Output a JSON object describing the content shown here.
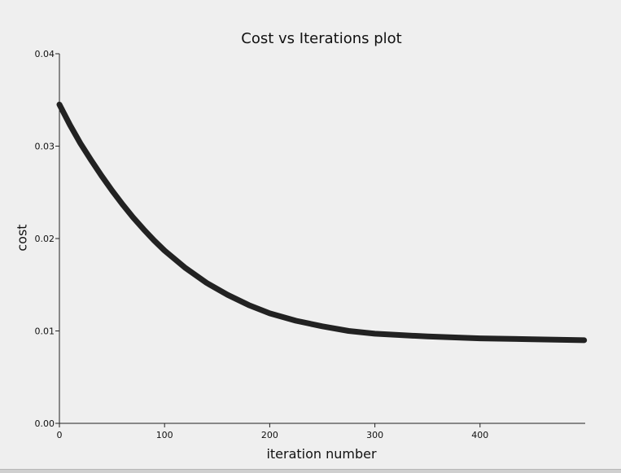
{
  "chart_data": {
    "type": "line",
    "title": "Cost vs Iterations plot",
    "xlabel": "iteration number",
    "ylabel": "cost",
    "xlim": [
      0,
      500
    ],
    "ylim": [
      0,
      0.04
    ],
    "x_ticks": [
      0,
      100,
      200,
      300,
      400
    ],
    "x_tick_labels": [
      "0",
      "100",
      "200",
      "300",
      "400"
    ],
    "y_ticks": [
      0,
      0.01,
      0.02,
      0.03,
      0.04
    ],
    "y_tick_labels": [
      "0.00",
      "0.01",
      "0.02",
      "0.03",
      "0.04"
    ],
    "grid": false,
    "line_color": "#222222",
    "series": [
      {
        "x": [
          0,
          10,
          20,
          30,
          40,
          50,
          60,
          70,
          80,
          90,
          100,
          120,
          140,
          160,
          180,
          200,
          225,
          250,
          275,
          300,
          350,
          400,
          450,
          499
        ],
        "values": [
          0.0345,
          0.0323,
          0.0303,
          0.0285,
          0.0268,
          0.0252,
          0.0237,
          0.0223,
          0.021,
          0.0198,
          0.0187,
          0.0168,
          0.0152,
          0.0139,
          0.0128,
          0.0119,
          0.0111,
          0.0105,
          0.01,
          0.0097,
          0.0094,
          0.0092,
          0.0091,
          0.009
        ]
      }
    ]
  }
}
